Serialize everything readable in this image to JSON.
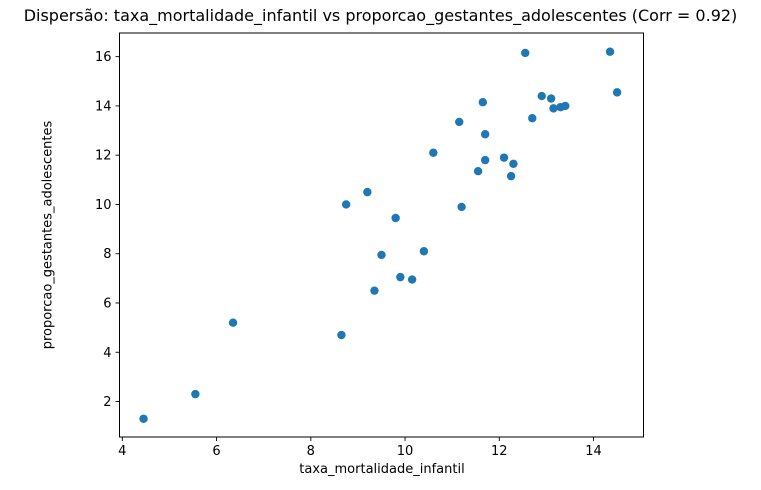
{
  "chart_data": {
    "type": "scatter",
    "title": "Dispersão: taxa_mortalidade_infantil vs proporcao_gestantes_adolescentes (Corr = 0.92)",
    "xlabel": "taxa_mortalidade_infantil",
    "ylabel": "proporcao_gestantes_adolescentes",
    "correlation": 0.92,
    "xlim": [
      3.94,
      15.06
    ],
    "ylim": [
      0.56,
      16.96
    ],
    "xticks": [
      4,
      6,
      8,
      10,
      12,
      14
    ],
    "yticks": [
      2,
      4,
      6,
      8,
      10,
      12,
      14,
      16
    ],
    "grid": false,
    "legend": null,
    "marker_color": "#1f77b4",
    "spine_color": "#000000",
    "points": [
      [
        4.45,
        1.3
      ],
      [
        5.55,
        2.3
      ],
      [
        6.35,
        5.2
      ],
      [
        8.65,
        4.7
      ],
      [
        8.75,
        10.0
      ],
      [
        9.2,
        10.5
      ],
      [
        9.35,
        6.5
      ],
      [
        9.5,
        7.95
      ],
      [
        9.8,
        9.45
      ],
      [
        9.9,
        7.05
      ],
      [
        10.15,
        6.95
      ],
      [
        10.4,
        8.1
      ],
      [
        10.6,
        12.1
      ],
      [
        11.15,
        13.35
      ],
      [
        11.2,
        9.9
      ],
      [
        11.55,
        11.35
      ],
      [
        11.65,
        14.15
      ],
      [
        11.7,
        12.85
      ],
      [
        11.7,
        11.8
      ],
      [
        12.1,
        11.9
      ],
      [
        12.25,
        11.15
      ],
      [
        12.3,
        11.65
      ],
      [
        12.55,
        16.15
      ],
      [
        12.7,
        13.5
      ],
      [
        12.9,
        14.4
      ],
      [
        13.1,
        14.3
      ],
      [
        13.15,
        13.9
      ],
      [
        13.3,
        13.95
      ],
      [
        13.4,
        14.0
      ],
      [
        14.35,
        16.2
      ],
      [
        14.5,
        14.55
      ]
    ]
  }
}
